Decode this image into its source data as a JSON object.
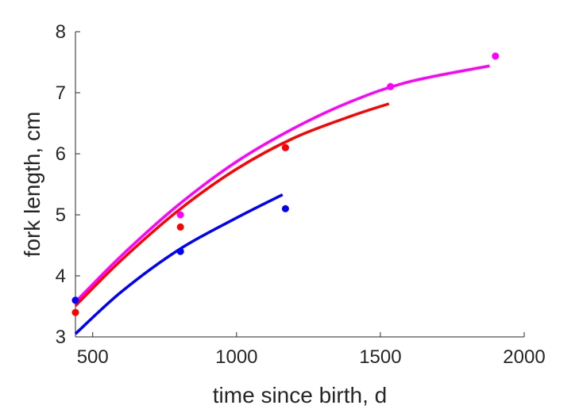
{
  "chart_data": {
    "type": "line",
    "title": "",
    "xlabel": "time since birth, d",
    "ylabel": "fork length, cm",
    "xlim": [
      440,
      2000
    ],
    "ylim": [
      3,
      8
    ],
    "xticks": [
      500,
      1000,
      1500,
      2000
    ],
    "yticks": [
      3,
      4,
      5,
      6,
      7,
      8
    ],
    "xtick_labels": [
      "500",
      "1000",
      "1500",
      "2000"
    ],
    "ytick_labels": [
      "3",
      "4",
      "5",
      "6",
      "7",
      "8"
    ],
    "grid": false,
    "legend": "none",
    "series": [
      {
        "color": "#ff00ff",
        "points": {
          "x": [
            440,
            805,
            1170,
            1535,
            1900
          ],
          "y": [
            3.6,
            5.0,
            6.1,
            7.1,
            7.6
          ]
        },
        "curve": {
          "x": [
            440,
            600,
            800,
            1000,
            1200,
            1400,
            1600,
            1880
          ],
          "y": [
            3.57,
            4.33,
            5.17,
            5.87,
            6.42,
            6.86,
            7.18,
            7.44
          ]
        }
      },
      {
        "color": "#ff0000",
        "points": {
          "x": [
            440,
            805,
            1170
          ],
          "y": [
            3.4,
            4.8,
            6.1
          ]
        },
        "curve": {
          "x": [
            440,
            600,
            800,
            1000,
            1200,
            1400,
            1530
          ],
          "y": [
            3.51,
            4.26,
            5.08,
            5.75,
            6.26,
            6.62,
            6.82
          ]
        }
      },
      {
        "color": "#0000ff",
        "points": {
          "x": [
            440,
            805,
            1170
          ],
          "y": [
            3.6,
            4.4,
            5.1
          ]
        },
        "curve": {
          "x": [
            440,
            600,
            800,
            1000,
            1160
          ],
          "y": [
            3.05,
            3.74,
            4.43,
            4.95,
            5.33
          ]
        }
      }
    ]
  }
}
